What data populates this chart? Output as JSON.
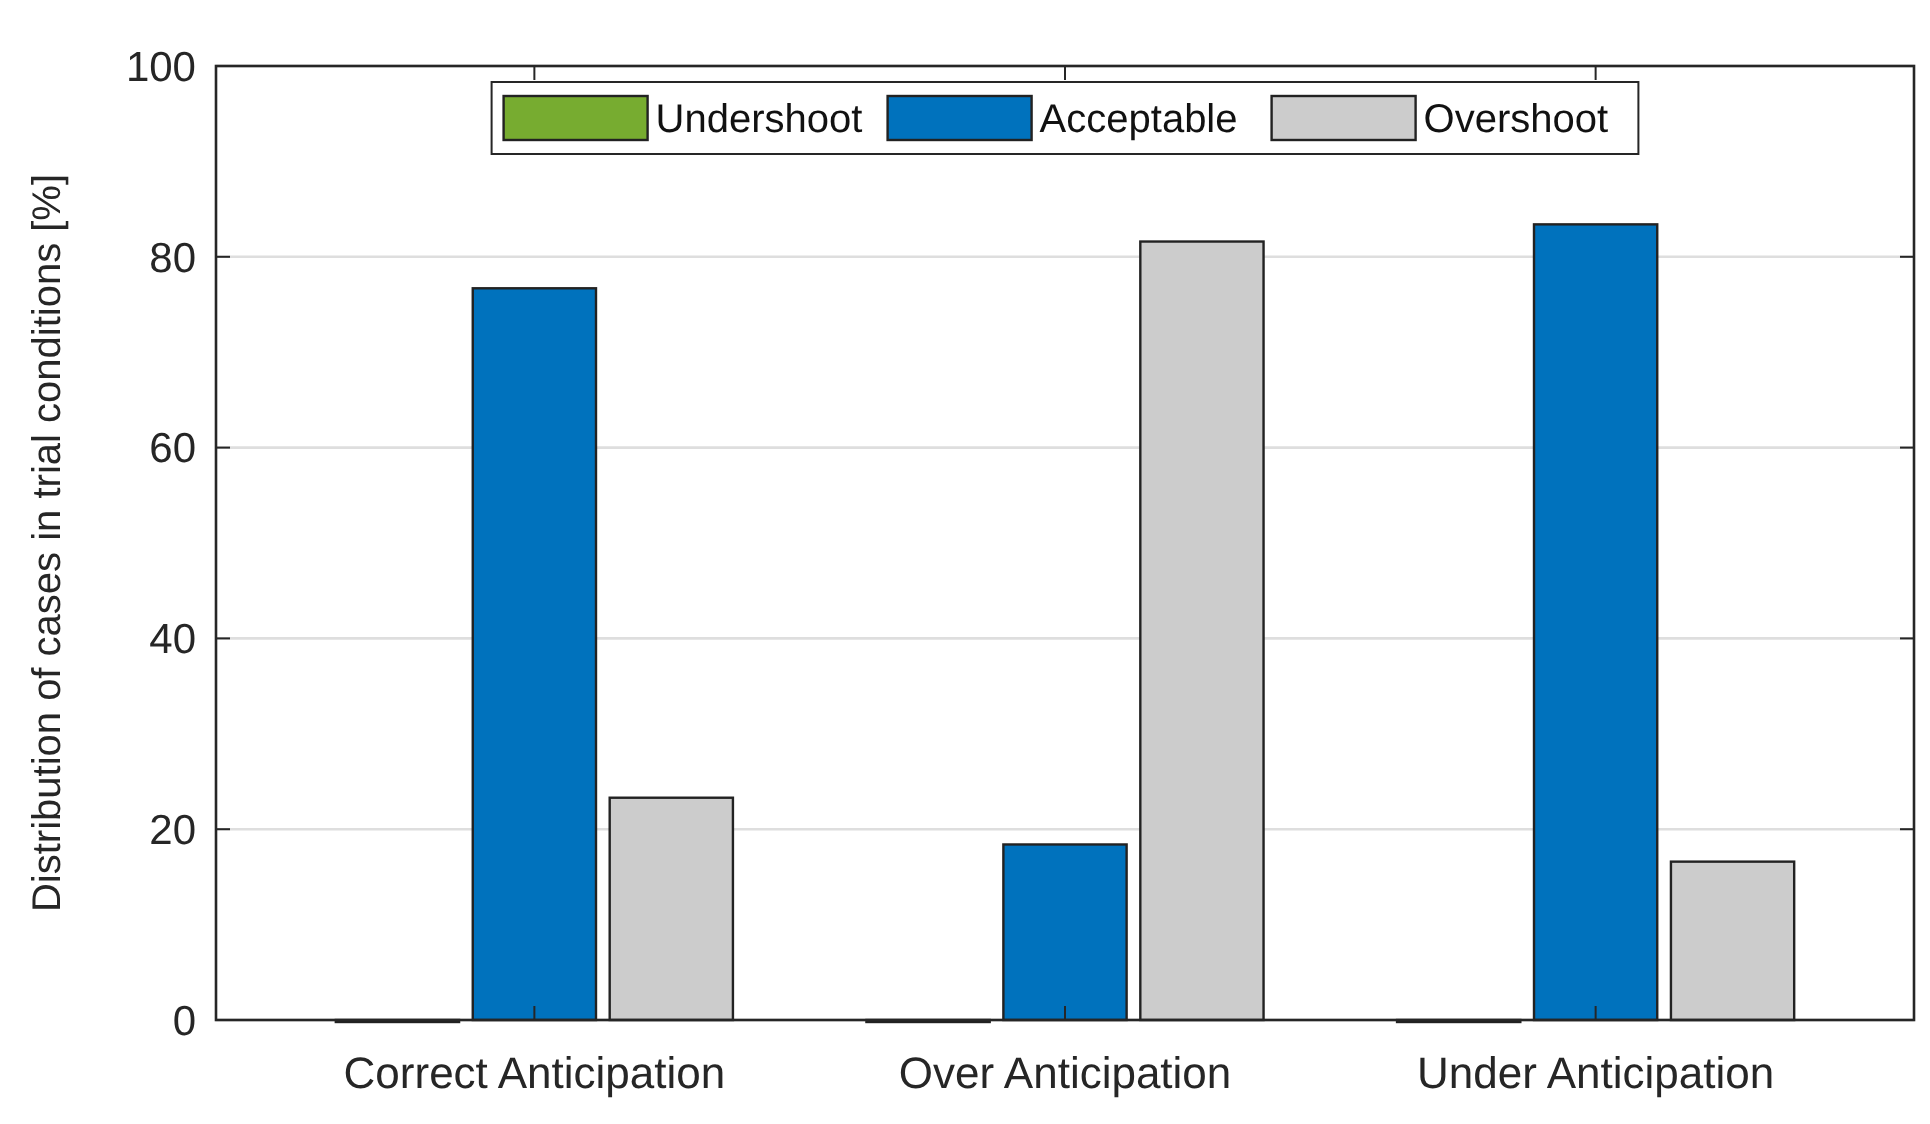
{
  "chart_data": {
    "type": "bar",
    "ylabel": "Distribution of cases in trial conditions [%]",
    "categories": [
      "Correct Anticipation",
      "Over Anticipation",
      "Under Anticipation"
    ],
    "series": [
      {
        "name": "Undershoot",
        "color": "#77ac30",
        "values": [
          0,
          0,
          0
        ]
      },
      {
        "name": "Acceptable",
        "color": "#0072bd",
        "values": [
          76.7,
          18.4,
          83.4
        ]
      },
      {
        "name": "Overshoot",
        "color": "#cccccc",
        "values": [
          23.3,
          81.6,
          16.6
        ]
      }
    ],
    "ylim": [
      0,
      100
    ],
    "yticks": [
      0,
      20,
      40,
      60,
      80,
      100
    ],
    "grid": "y",
    "legend": "top"
  }
}
